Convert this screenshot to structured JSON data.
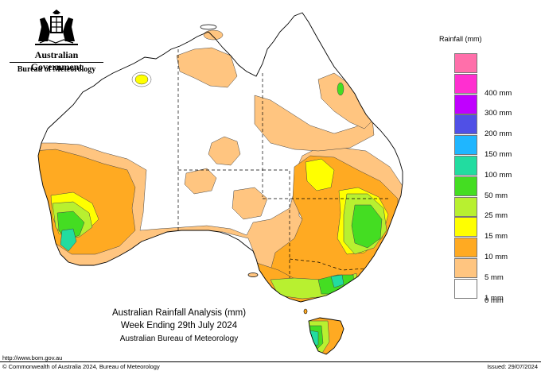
{
  "header": {
    "government": "Australian Government",
    "bureau": "Bureau of Meteorology"
  },
  "legend": {
    "title": "Rainfall (mm)",
    "bins": [
      {
        "label": "",
        "color": "#ff6faa"
      },
      {
        "label": "400 mm",
        "color": "#ff2fd0"
      },
      {
        "label": "300 mm",
        "color": "#c000ff"
      },
      {
        "label": "200 mm",
        "color": "#5050e6"
      },
      {
        "label": "150 mm",
        "color": "#1fb6ff"
      },
      {
        "label": "100 mm",
        "color": "#22dca0"
      },
      {
        "label": "50 mm",
        "color": "#44dd22"
      },
      {
        "label": "25 mm",
        "color": "#b8f030"
      },
      {
        "label": "15 mm",
        "color": "#ffff00"
      },
      {
        "label": "10 mm",
        "color": "#ffaa22"
      },
      {
        "label": "5 mm",
        "color": "#ffc580"
      },
      {
        "label": "1 mm",
        "color": "#ffffff"
      }
    ],
    "bottom_label": "0 mm"
  },
  "caption": {
    "line1": "Australian Rainfall Analysis (mm)",
    "line2": "Week Ending 29th July 2024",
    "line3": "Australian Bureau of Meteorology"
  },
  "footer": {
    "url": "http://www.bom.gov.au",
    "copyright": "© Commonwealth of Australia 2024, Bureau of Meteorology",
    "issued": "Issued: 29/07/2024"
  },
  "colors": {
    "coast": "#000000",
    "border": "#000000",
    "contour": "#333333"
  },
  "icons": {
    "crest": "coat-of-arms-icon"
  }
}
